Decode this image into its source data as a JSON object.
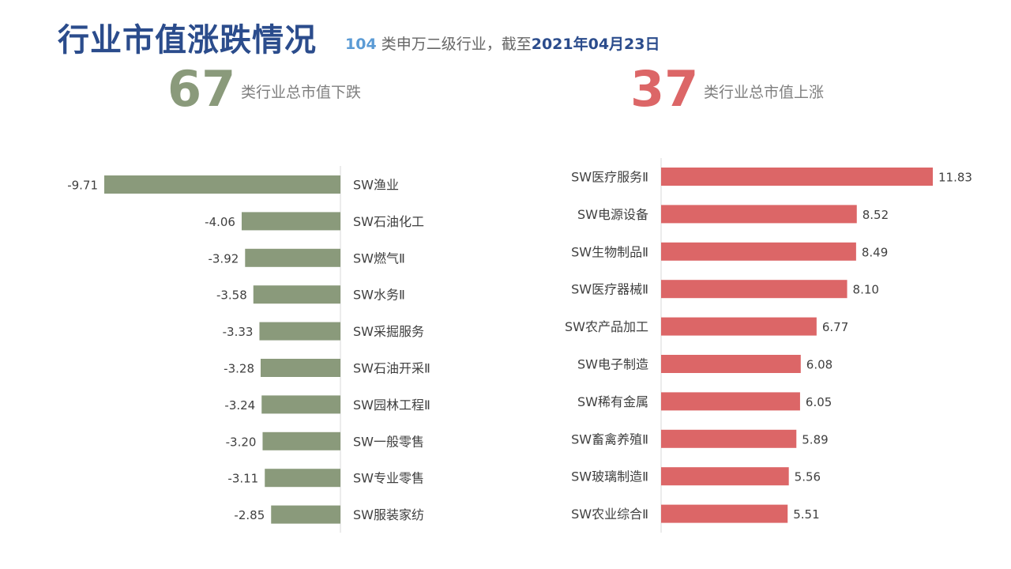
{
  "header": {
    "title": "行业市值涨跌情况",
    "subtitle_count": "104",
    "subtitle_text": " 类申万二级行业，截至",
    "subtitle_date": "2021年04月23日"
  },
  "summary": {
    "down_count": "67",
    "down_text": "类行业总市值下跌",
    "up_count": "37",
    "up_text": "类行业总市值上涨"
  },
  "colors": {
    "title": "#2b4c8c",
    "down": "#8a9a7b",
    "up": "#dc6667",
    "subtitle_count": "#5b9bd5"
  },
  "chart_data": [
    {
      "type": "bar",
      "orientation": "horizontal",
      "categories": [
        "SW渔业",
        "SW石油化工",
        "SW燃气Ⅱ",
        "SW水务Ⅱ",
        "SW采掘服务",
        "SW石油开采Ⅱ",
        "SW园林工程Ⅱ",
        "SW一般零售",
        "SW专业零售",
        "SW服装家纺"
      ],
      "values": [
        -9.71,
        -4.06,
        -3.92,
        -3.58,
        -3.33,
        -3.28,
        -3.24,
        -3.2,
        -3.11,
        -2.85
      ],
      "value_labels": [
        "-9.71",
        "-4.06",
        "-3.92",
        "-3.58",
        "-3.33",
        "-3.28",
        "-3.24",
        "-3.20",
        "-3.11",
        "-2.85"
      ],
      "xlim": [
        -9.71,
        0
      ],
      "axis_labels_position": "right",
      "grid": false,
      "legend": "none"
    },
    {
      "type": "bar",
      "orientation": "horizontal",
      "categories": [
        "SW医疗服务Ⅱ",
        "SW电源设备",
        "SW生物制品Ⅱ",
        "SW医疗器械Ⅱ",
        "SW农产品加工",
        "SW电子制造",
        "SW稀有金属",
        "SW畜禽养殖Ⅱ",
        "SW玻璃制造Ⅱ",
        "SW农业综合Ⅱ"
      ],
      "values": [
        11.83,
        8.52,
        8.49,
        8.1,
        6.77,
        6.08,
        6.05,
        5.89,
        5.56,
        5.51
      ],
      "value_labels": [
        "11.83",
        "8.52",
        "8.49",
        "8.10",
        "6.77",
        "6.08",
        "6.05",
        "5.89",
        "5.56",
        "5.51"
      ],
      "xlim": [
        0,
        11.83
      ],
      "axis_labels_position": "left",
      "grid": false,
      "legend": "none"
    }
  ]
}
